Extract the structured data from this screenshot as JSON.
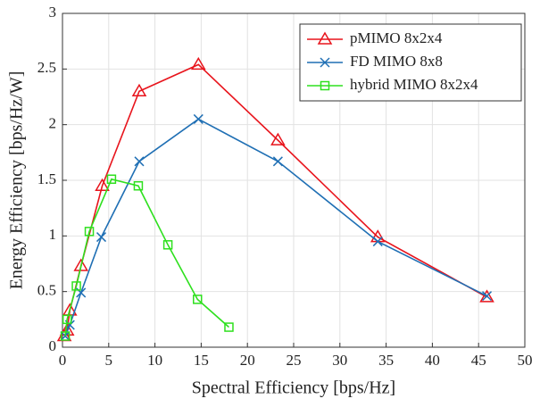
{
  "chart_data": {
    "type": "line",
    "xlabel": "Spectral Efficiency [bps/Hz]",
    "ylabel": "Energy Efficiency [bps/Hz/W]",
    "xlim": [
      0,
      50
    ],
    "xticks": [
      0,
      5,
      10,
      15,
      20,
      25,
      30,
      35,
      40,
      45,
      50
    ],
    "ylim": [
      0,
      3
    ],
    "yticks": [
      0,
      0.5,
      1,
      1.5,
      2,
      2.5,
      3
    ],
    "grid": true,
    "legend": "upper right",
    "series": [
      {
        "name": "pMIMO 8x2x4",
        "color": "#e8141c",
        "marker": "triangle",
        "x": [
          0.2,
          0.5,
          0.8,
          2,
          4.3,
          8.3,
          14.7,
          23.3,
          34.1,
          45.9
        ],
        "values": [
          0.1,
          0.15,
          0.33,
          0.73,
          1.45,
          2.3,
          2.54,
          1.86,
          0.99,
          0.45
        ]
      },
      {
        "name": "FD MIMO 8x8",
        "color": "#1f6fb4",
        "marker": "x",
        "x": [
          0.3,
          0.8,
          2,
          4.2,
          8.3,
          14.7,
          23.3,
          34.1,
          45.9
        ],
        "values": [
          0.1,
          0.2,
          0.49,
          0.99,
          1.67,
          2.05,
          1.67,
          0.95,
          0.46
        ]
      },
      {
        "name": "hybrid MIMO 8x2x4",
        "color": "#2ee01e",
        "marker": "square",
        "x": [
          0.3,
          0.5,
          1.5,
          2.9,
          5.3,
          8.2,
          11.4,
          14.6,
          18
        ],
        "values": [
          0.1,
          0.25,
          0.55,
          1.04,
          1.51,
          1.45,
          0.92,
          0.43,
          0.18
        ]
      }
    ]
  }
}
